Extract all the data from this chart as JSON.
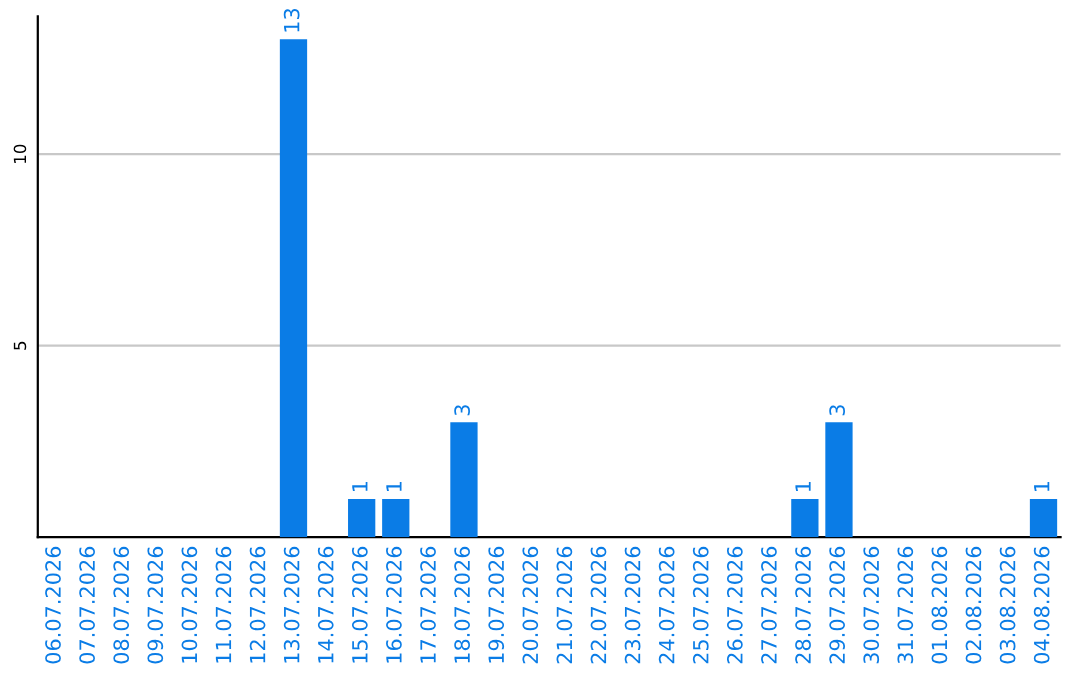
{
  "chart_data": {
    "type": "bar",
    "categories": [
      "06.07.2026",
      "07.07.2026",
      "08.07.2026",
      "09.07.2026",
      "10.07.2026",
      "11.07.2026",
      "12.07.2026",
      "13.07.2026",
      "14.07.2026",
      "15.07.2026",
      "16.07.2026",
      "17.07.2026",
      "18.07.2026",
      "19.07.2026",
      "20.07.2026",
      "21.07.2026",
      "22.07.2026",
      "23.07.2026",
      "24.07.2026",
      "25.07.2026",
      "26.07.2026",
      "27.07.2026",
      "28.07.2026",
      "29.07.2026",
      "30.07.2026",
      "31.07.2026",
      "01.08.2026",
      "02.08.2026",
      "03.08.2026",
      "04.08.2026"
    ],
    "values": [
      0,
      0,
      0,
      0,
      0,
      0,
      0,
      13,
      0,
      1,
      1,
      0,
      3,
      0,
      0,
      0,
      0,
      0,
      0,
      0,
      0,
      0,
      1,
      3,
      0,
      0,
      0,
      0,
      0,
      1
    ],
    "value_labels": [
      null,
      null,
      null,
      null,
      null,
      null,
      null,
      "13",
      null,
      "1",
      "1",
      null,
      "3",
      null,
      null,
      null,
      null,
      null,
      null,
      null,
      null,
      null,
      "1",
      "3",
      null,
      null,
      null,
      null,
      null,
      "1"
    ],
    "color": "#0a7ce6",
    "ylim": [
      0,
      13.6
    ],
    "yticks": [
      5,
      10
    ],
    "grid": "y"
  }
}
